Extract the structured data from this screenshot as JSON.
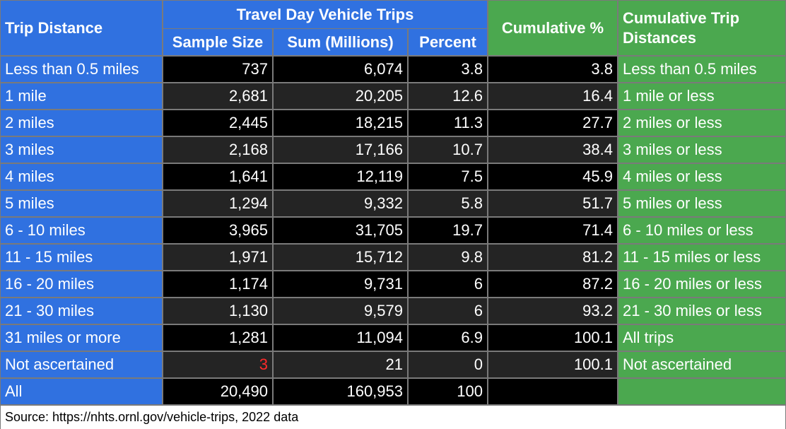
{
  "header": {
    "trip_distance": "Trip Distance",
    "group": "Travel Day Vehicle Trips",
    "columns": [
      "Sample Size",
      "Sum (Millions)",
      "Percent"
    ],
    "cumulative_pct": "Cumulative %",
    "cumulative_dist": "Cumulative Trip Distances"
  },
  "table": {
    "rows": [
      [
        "Less than 0.5 miles",
        "737",
        "6,074",
        "3.8",
        "3.8",
        "Less than 0.5 miles"
      ],
      [
        "1 mile",
        "2,681",
        "20,205",
        "12.6",
        "16.4",
        "1 mile or less"
      ],
      [
        "2 miles",
        "2,445",
        "18,215",
        "11.3",
        "27.7",
        "2 miles or less"
      ],
      [
        "3 miles",
        "2,168",
        "17,166",
        "10.7",
        "38.4",
        "3 miles or less"
      ],
      [
        "4 miles",
        "1,641",
        "12,119",
        "7.5",
        "45.9",
        "4 miles or less"
      ],
      [
        "5 miles",
        "1,294",
        "9,332",
        "5.8",
        "51.7",
        "5 miles or less"
      ],
      [
        "6 - 10 miles",
        "3,965",
        "31,705",
        "19.7",
        "71.4",
        "6 - 10 miles or less"
      ],
      [
        "11 - 15 miles",
        "1,971",
        "15,712",
        "9.8",
        "81.2",
        "11 - 15 miles or less"
      ],
      [
        "16 - 20 miles",
        "1,174",
        "9,731",
        "6",
        "87.2",
        "16 - 20 miles or less"
      ],
      [
        "21 - 30 miles",
        "1,130",
        "9,579",
        "6",
        "93.2",
        "21 - 30 miles or less"
      ],
      [
        "31 miles or more",
        "1,281",
        "11,094",
        "6.9",
        "100.1",
        "All trips"
      ],
      [
        "Not ascertained",
        "3",
        "21",
        "0",
        "100.1",
        "Not ascertained"
      ],
      [
        "All",
        "20,490",
        "160,953",
        "100"
      ]
    ]
  },
  "source": "Source: https://nhts.ornl.gov/vehicle-trips, 2022 data"
}
